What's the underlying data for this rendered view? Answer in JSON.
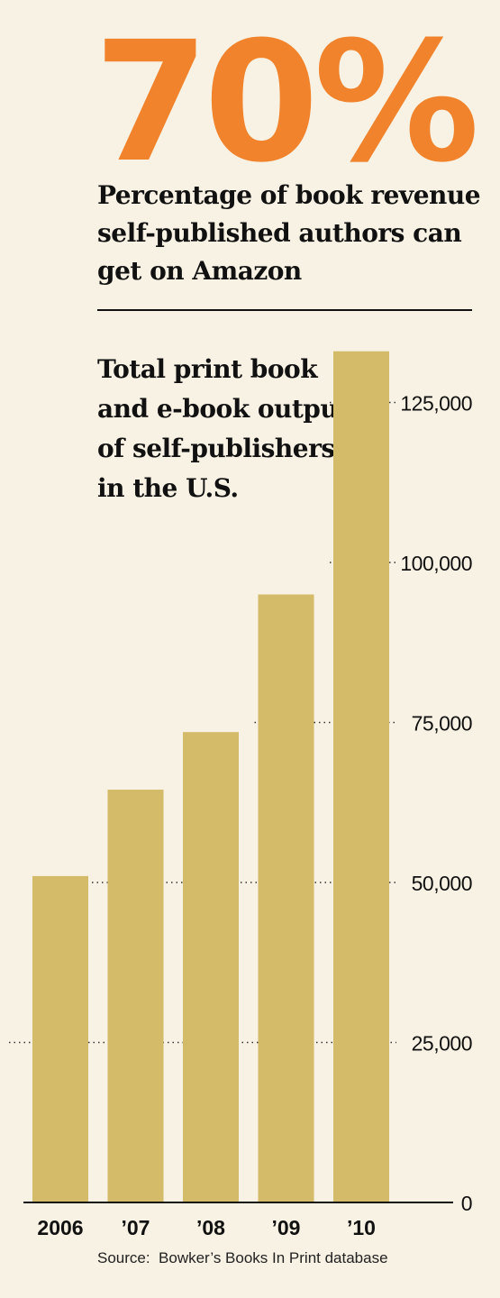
{
  "headline": {
    "stat": "70%",
    "caption": "Percentage of book revenue self-published authors can get on Amazon"
  },
  "chart_data": {
    "type": "bar",
    "title": "Total print book and e-book output of self-publishers in the U.S.",
    "categories": [
      "2006",
      "’07",
      "’08",
      "’09",
      "’10"
    ],
    "values": [
      51000,
      64500,
      73500,
      95000,
      133000
    ],
    "y_ticks": [
      0,
      25000,
      50000,
      75000,
      100000,
      125000
    ],
    "y_tick_labels": [
      "0",
      "25,000",
      "50,000",
      "75,000",
      "100,000",
      "125,000"
    ],
    "ylim": [
      0,
      135000
    ],
    "xlabel": "",
    "ylabel": "",
    "grid": true,
    "grid_style": "dotted",
    "y_axis_side": "right",
    "bar_color": "#d4bb69"
  },
  "source": "Source:  Bowker’s Books In Print database"
}
